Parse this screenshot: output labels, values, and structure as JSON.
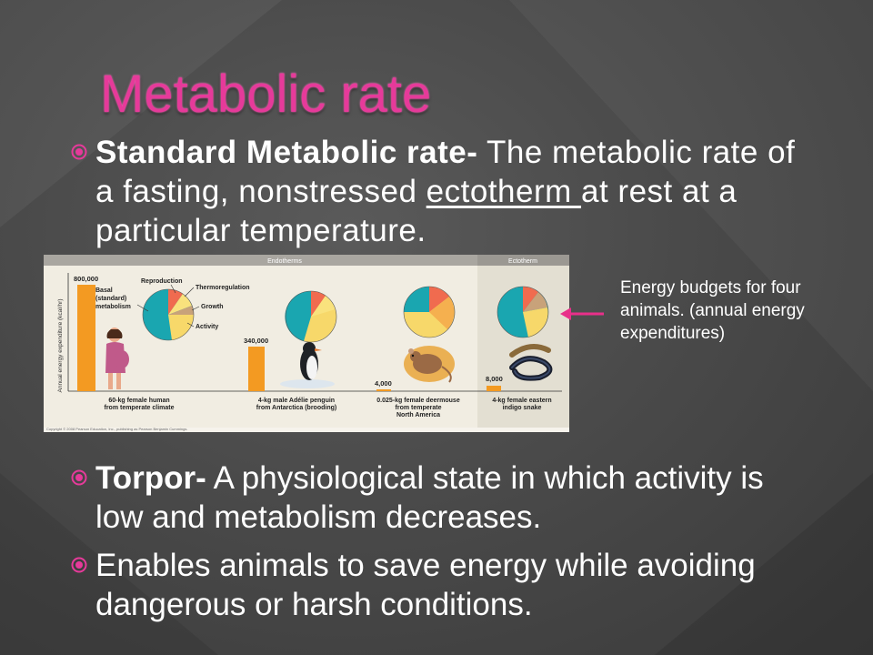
{
  "title": "Metabolic rate",
  "bullets": {
    "b1": {
      "term": "Standard Metabolic rate-",
      "pre": " The metabolic rate of a fasting, nonstressed ",
      "underlined": "ectotherm ",
      "post": "at rest at a particular temperature."
    },
    "b2": {
      "term": "Torpor-",
      "text": " A physiological state in which activity is low and metabolism decreases."
    },
    "b3": {
      "text": "Enables animals to save energy while avoiding dangerous or harsh conditions."
    }
  },
  "side_note": "Energy budgets for four animals. (annual energy expenditures)",
  "figure": {
    "header_endo": "Endotherms",
    "header_ecto": "Ectotherm",
    "ylabel": "Annual energy expenditure (kcal/hr)",
    "legend": [
      "Reproduction",
      "Thermoregulation",
      "Basal (standard) metabolism",
      "Growth",
      "Activity"
    ],
    "legend_lines": {
      "reproduction": "Reproduction",
      "thermo": "Thermoregulation",
      "basal1": "Basal",
      "basal2": "(standard)",
      "basal3": "metabolism",
      "growth": "Growth",
      "activity": "Activity"
    },
    "animals": [
      {
        "value_label": "800,000",
        "name1": "60-kg female human",
        "name2": "from temperate climate",
        "name3": ""
      },
      {
        "value_label": "340,000",
        "name1": "4-kg male Adélie penguin",
        "name2": "from Antarctica (brooding)",
        "name3": ""
      },
      {
        "value_label": "4,000",
        "name1": "0.025-kg female deermouse",
        "name2": "from temperate",
        "name3": "North America"
      },
      {
        "value_label": "8,000",
        "name1": "4-kg female eastern",
        "name2": "indigo snake",
        "name3": ""
      }
    ],
    "copyright": "Copyright © 2008 Pearson Education, Inc., publishing as Pearson Benjamin Cummings."
  },
  "chart_data": {
    "type": "bar",
    "categories": [
      "60-kg female human from temperate climate",
      "4-kg male Adélie penguin from Antarctica (brooding)",
      "0.025-kg female deermouse from temperate North America",
      "4-kg female eastern indigo snake"
    ],
    "values": [
      800000,
      340000,
      4000,
      8000
    ],
    "ylabel": "Annual energy expenditure (kcal/hr)",
    "pie_components": [
      "Basal (standard) metabolism",
      "Reproduction",
      "Thermoregulation",
      "Growth",
      "Activity"
    ],
    "pie_colors": {
      "basal": "#1aa6b0",
      "reproduction": "#f06b4f",
      "thermoregulation": "#f9e27d",
      "growth": "#c8a27a",
      "activity": "#f7d86a"
    }
  },
  "colors": {
    "accent": "#e63a9a",
    "bar": "#f39a22",
    "arrow": "#e8308a"
  }
}
